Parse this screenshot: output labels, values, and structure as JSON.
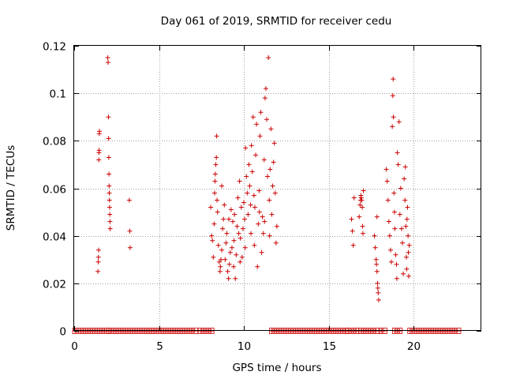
{
  "chart_data": {
    "type": "scatter",
    "title": "Day 061 of 2019, SRMTID for receiver cedu",
    "xlabel": "GPS time / hours",
    "ylabel": "SRMTID / TECUs",
    "xlim": [
      0,
      24
    ],
    "ylim": [
      0,
      0.12
    ],
    "xticks": [
      0,
      5,
      10,
      15,
      20
    ],
    "xtick_labels": [
      "0",
      "5",
      "10",
      "15",
      "20"
    ],
    "yticks": [
      0,
      0.02,
      0.04,
      0.06,
      0.08,
      0.1,
      0.12
    ],
    "ytick_labels": [
      "0",
      "0.02",
      "0.04",
      "0.06",
      "0.08",
      "0.1",
      "0.12"
    ],
    "grid": true,
    "marker": "plus",
    "color": "#cc0000",
    "zero_segments": [
      [
        0.05,
        1.95
      ],
      [
        2.15,
        7.15
      ],
      [
        7.45,
        8.1
      ],
      [
        11.65,
        16.0
      ],
      [
        16.15,
        16.65
      ],
      [
        16.9,
        17.85
      ],
      [
        18.1,
        18.3
      ],
      [
        18.9,
        19.2
      ],
      [
        19.8,
        22.65
      ]
    ],
    "series": [
      {
        "name": "SRMTID",
        "points": [
          [
            1.4,
            0.025
          ],
          [
            1.42,
            0.029
          ],
          [
            1.43,
            0.031
          ],
          [
            1.44,
            0.034
          ],
          [
            1.45,
            0.072
          ],
          [
            1.46,
            0.075
          ],
          [
            1.47,
            0.076
          ],
          [
            1.48,
            0.083
          ],
          [
            1.49,
            0.084
          ],
          [
            1.98,
            0.115
          ],
          [
            2.0,
            0.113
          ],
          [
            2.02,
            0.09
          ],
          [
            2.03,
            0.081
          ],
          [
            2.04,
            0.073
          ],
          [
            2.05,
            0.066
          ],
          [
            2.06,
            0.061
          ],
          [
            2.07,
            0.058
          ],
          [
            2.08,
            0.055
          ],
          [
            2.09,
            0.052
          ],
          [
            2.1,
            0.049
          ],
          [
            2.11,
            0.046
          ],
          [
            2.12,
            0.043
          ],
          [
            3.25,
            0.055
          ],
          [
            3.28,
            0.042
          ],
          [
            3.3,
            0.035
          ],
          [
            8.05,
            0.052
          ],
          [
            8.1,
            0.04
          ],
          [
            8.15,
            0.038
          ],
          [
            8.2,
            0.031
          ],
          [
            8.25,
            0.045
          ],
          [
            8.28,
            0.058
          ],
          [
            8.3,
            0.063
          ],
          [
            8.32,
            0.066
          ],
          [
            8.35,
            0.07
          ],
          [
            8.38,
            0.073
          ],
          [
            8.4,
            0.082
          ],
          [
            8.42,
            0.055
          ],
          [
            8.45,
            0.05
          ],
          [
            8.5,
            0.036
          ],
          [
            8.55,
            0.029
          ],
          [
            8.6,
            0.025
          ],
          [
            8.62,
            0.027
          ],
          [
            8.65,
            0.03
          ],
          [
            8.7,
            0.034
          ],
          [
            8.75,
            0.043
          ],
          [
            8.8,
            0.047
          ],
          [
            8.85,
            0.053
          ],
          [
            8.9,
            0.03
          ],
          [
            8.95,
            0.037
          ],
          [
            9.0,
            0.041
          ],
          [
            9.05,
            0.025
          ],
          [
            9.1,
            0.022
          ],
          [
            9.15,
            0.028
          ],
          [
            9.2,
            0.033
          ],
          [
            9.25,
            0.051
          ],
          [
            9.3,
            0.035
          ],
          [
            9.35,
            0.046
          ],
          [
            9.4,
            0.027
          ],
          [
            9.45,
            0.049
          ],
          [
            9.5,
            0.022
          ],
          [
            9.55,
            0.032
          ],
          [
            9.6,
            0.044
          ],
          [
            9.65,
            0.056
          ],
          [
            9.7,
            0.041
          ],
          [
            9.75,
            0.063
          ],
          [
            9.8,
            0.039
          ],
          [
            9.85,
            0.052
          ],
          [
            9.9,
            0.031
          ],
          [
            9.95,
            0.043
          ],
          [
            10.0,
            0.054
          ],
          [
            10.05,
            0.047
          ],
          [
            10.1,
            0.077
          ],
          [
            10.15,
            0.065
          ],
          [
            10.2,
            0.058
          ],
          [
            10.25,
            0.049
          ],
          [
            10.3,
            0.07
          ],
          [
            10.35,
            0.061
          ],
          [
            10.4,
            0.053
          ],
          [
            10.45,
            0.078
          ],
          [
            10.5,
            0.067
          ],
          [
            10.55,
            0.09
          ],
          [
            10.6,
            0.057
          ],
          [
            10.65,
            0.052
          ],
          [
            10.7,
            0.074
          ],
          [
            10.75,
            0.087
          ],
          [
            10.8,
            0.027
          ],
          [
            10.85,
            0.045
          ],
          [
            10.9,
            0.059
          ],
          [
            10.95,
            0.082
          ],
          [
            11.0,
            0.092
          ],
          [
            11.05,
            0.033
          ],
          [
            11.1,
            0.048
          ],
          [
            11.15,
            0.041
          ],
          [
            11.2,
            0.072
          ],
          [
            11.25,
            0.098
          ],
          [
            11.3,
            0.102
          ],
          [
            11.35,
            0.089
          ],
          [
            11.4,
            0.065
          ],
          [
            11.45,
            0.115
          ],
          [
            11.5,
            0.055
          ],
          [
            11.55,
            0.068
          ],
          [
            11.6,
            0.085
          ],
          [
            11.65,
            0.049
          ],
          [
            11.7,
            0.061
          ],
          [
            11.75,
            0.071
          ],
          [
            11.8,
            0.079
          ],
          [
            11.85,
            0.058
          ],
          [
            11.9,
            0.037
          ],
          [
            11.95,
            0.044
          ],
          [
            8.7,
            0.061
          ],
          [
            9.12,
            0.047
          ],
          [
            9.42,
            0.038
          ],
          [
            9.78,
            0.029
          ],
          [
            10.08,
            0.035
          ],
          [
            10.42,
            0.041
          ],
          [
            10.62,
            0.036
          ],
          [
            10.92,
            0.05
          ],
          [
            11.22,
            0.046
          ],
          [
            11.52,
            0.04
          ],
          [
            16.35,
            0.047
          ],
          [
            16.4,
            0.042
          ],
          [
            16.45,
            0.036
          ],
          [
            16.5,
            0.056
          ],
          [
            16.8,
            0.048
          ],
          [
            16.85,
            0.053
          ],
          [
            16.88,
            0.055
          ],
          [
            16.9,
            0.057
          ],
          [
            16.92,
            0.056
          ],
          [
            16.95,
            0.055
          ],
          [
            16.98,
            0.052
          ],
          [
            17.0,
            0.044
          ],
          [
            17.02,
            0.041
          ],
          [
            17.05,
            0.059
          ],
          [
            17.7,
            0.04
          ],
          [
            17.75,
            0.035
          ],
          [
            17.8,
            0.03
          ],
          [
            17.82,
            0.028
          ],
          [
            17.85,
            0.025
          ],
          [
            17.88,
            0.02
          ],
          [
            17.9,
            0.018
          ],
          [
            17.92,
            0.016
          ],
          [
            17.95,
            0.013
          ],
          [
            17.85,
            0.048
          ],
          [
            18.4,
            0.068
          ],
          [
            18.45,
            0.063
          ],
          [
            18.5,
            0.055
          ],
          [
            18.55,
            0.046
          ],
          [
            18.6,
            0.04
          ],
          [
            18.65,
            0.034
          ],
          [
            18.7,
            0.029
          ],
          [
            18.75,
            0.086
          ],
          [
            18.78,
            0.099
          ],
          [
            18.8,
            0.106
          ],
          [
            18.82,
            0.09
          ],
          [
            18.85,
            0.058
          ],
          [
            18.88,
            0.05
          ],
          [
            18.9,
            0.043
          ],
          [
            18.95,
            0.032
          ],
          [
            19.0,
            0.028
          ],
          [
            19.02,
            0.022
          ],
          [
            19.05,
            0.075
          ],
          [
            19.1,
            0.07
          ],
          [
            19.15,
            0.088
          ],
          [
            19.2,
            0.049
          ],
          [
            19.25,
            0.06
          ],
          [
            19.3,
            0.043
          ],
          [
            19.35,
            0.037
          ],
          [
            19.4,
            0.024
          ],
          [
            19.45,
            0.064
          ],
          [
            19.5,
            0.055
          ],
          [
            19.52,
            0.069
          ],
          [
            19.55,
            0.044
          ],
          [
            19.58,
            0.031
          ],
          [
            19.6,
            0.026
          ],
          [
            19.62,
            0.047
          ],
          [
            19.65,
            0.052
          ],
          [
            19.68,
            0.04
          ],
          [
            19.7,
            0.033
          ],
          [
            19.72,
            0.023
          ],
          [
            19.75,
            0.036
          ]
        ]
      }
    ]
  }
}
